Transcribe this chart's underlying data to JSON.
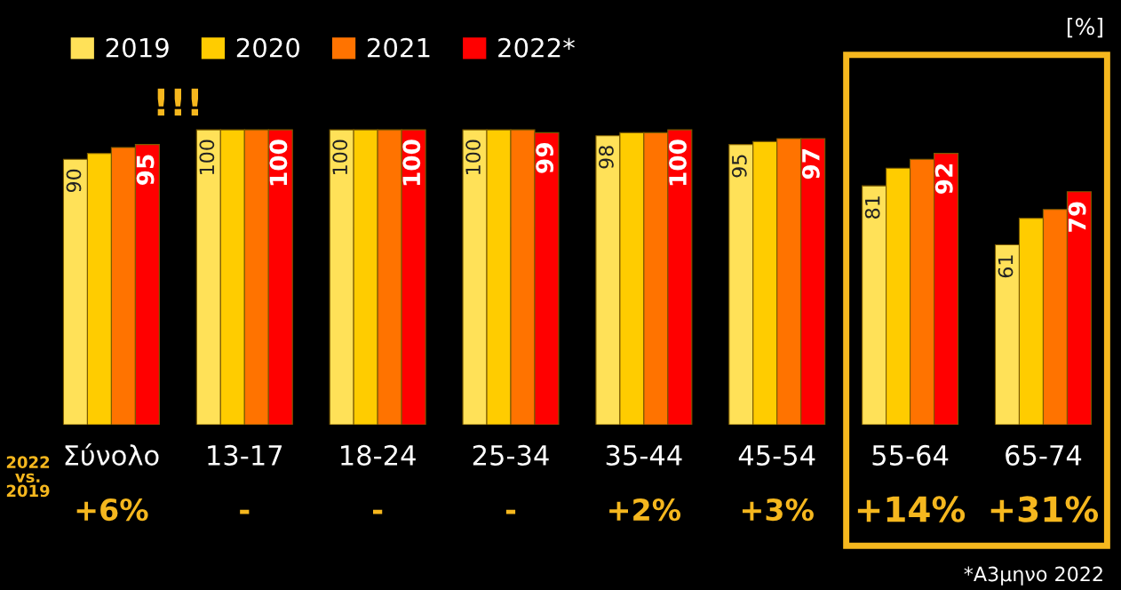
{
  "chart_data": {
    "type": "bar",
    "categories": [
      "Σύνολο",
      "13-17",
      "18-24",
      "25-34",
      "35-44",
      "45-54",
      "55-64",
      "65-74"
    ],
    "series": [
      {
        "name": "2019",
        "color": "#ffe158",
        "values": [
          90,
          100,
          100,
          100,
          98,
          95,
          81,
          61
        ],
        "value_labels": [
          "90",
          "100",
          "100",
          "100",
          "98",
          "95",
          "81",
          "61"
        ]
      },
      {
        "name": "2020",
        "color": "#ffcc00",
        "values": [
          92,
          100,
          100,
          100,
          99,
          96,
          87,
          70
        ],
        "value_labels": [
          null,
          null,
          null,
          null,
          null,
          null,
          null,
          null
        ]
      },
      {
        "name": "2021",
        "color": "#ff7300",
        "values": [
          94,
          100,
          100,
          100,
          99,
          97,
          90,
          73
        ],
        "value_labels": [
          null,
          null,
          null,
          null,
          null,
          null,
          null,
          null
        ]
      },
      {
        "name": "2022*",
        "color": "#ff0000",
        "values": [
          95,
          100,
          100,
          99,
          100,
          97,
          92,
          79
        ],
        "value_labels": [
          "95",
          "100",
          "100",
          "99",
          "100",
          "97",
          "92",
          "79"
        ]
      }
    ],
    "legend": "top left",
    "annotations": [
      "[%]",
      "!!!",
      "2022 vs. 2019",
      "+6%",
      "-",
      "-",
      "-",
      "+2%",
      "+3%",
      "+14%",
      "+31%",
      "*Α3μηνο 2022"
    ]
  }
}
